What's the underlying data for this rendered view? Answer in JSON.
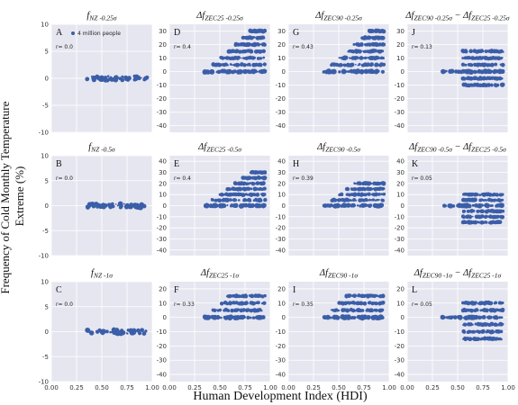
{
  "figure": {
    "ylabel": "Frequency of Cold Monthly Temperature Extreme (%)",
    "xlabel": "Human Development Index (HDI)",
    "ylabel_lines": [
      "Frequency of Cold Monthly Temperature",
      "Extreme (%)"
    ],
    "point_color": "#3b5ea8",
    "background_color": "#e6e6f0",
    "grid_color": "#ffffff"
  },
  "chart_data": [
    {
      "id": "A",
      "type": "scatter",
      "title": "f_{NZ -0.25σ}",
      "title_main": "f",
      "title_sub": "NZ -0.25σ",
      "r": "r= 0.0",
      "legend": "4 million people",
      "xlim": [
        0,
        1
      ],
      "ylim": [
        -10,
        10
      ],
      "xticks": [
        "0.00",
        "0.25",
        "0.50",
        "0.75",
        "1.00"
      ],
      "yticks": [
        -10,
        -5,
        0,
        5,
        10
      ],
      "distribution": {
        "x_range": [
          0.35,
          0.95
        ],
        "y_bands": [
          0
        ],
        "note": "all points at 0"
      }
    },
    {
      "id": "D",
      "type": "scatter",
      "title": "Δf_{ZEC25 -0.25σ}",
      "title_main": "Δf",
      "title_sub": "ZEC25 -0.25σ",
      "r": "r= 0.4",
      "xlim": [
        0,
        1
      ],
      "ylim": [
        -45,
        35
      ],
      "xticks": [
        "0.00",
        "0.25",
        "0.50",
        "0.75",
        "1.00"
      ],
      "yticks": [
        -40,
        -30,
        -20,
        -10,
        0,
        10,
        20,
        30
      ],
      "distribution": {
        "x_range": [
          0.35,
          0.95
        ],
        "y_bands": [
          0,
          5,
          10,
          15,
          20,
          25,
          30
        ],
        "trend": "increasing"
      }
    },
    {
      "id": "G",
      "type": "scatter",
      "title": "Δf_{ZEC90 -0.25σ}",
      "title_main": "Δf",
      "title_sub": "ZEC90 -0.25σ",
      "r": "r= 0.43",
      "xlim": [
        0,
        1
      ],
      "ylim": [
        -45,
        35
      ],
      "xticks": [
        "0.00",
        "0.25",
        "0.50",
        "0.75",
        "1.00"
      ],
      "yticks": [
        -40,
        -30,
        -20,
        -10,
        0,
        10,
        20,
        30
      ],
      "distribution": {
        "x_range": [
          0.35,
          0.95
        ],
        "y_bands": [
          0,
          5,
          10,
          15,
          20,
          25,
          30
        ],
        "trend": "increasing"
      }
    },
    {
      "id": "J",
      "type": "scatter",
      "title": "Δf_{ZEC90 -0.25σ} − Δf_{ZEC25 -0.25σ}",
      "title_main": "Δf",
      "title_sub": "ZEC90 -0.25σ",
      "title_mid": " − Δf",
      "title_sub2": "ZEC25 -0.25σ",
      "r": "r= 0.13",
      "xlim": [
        0,
        1
      ],
      "ylim": [
        -45,
        35
      ],
      "xticks": [
        "0.00",
        "0.25",
        "0.50",
        "0.75",
        "1.00"
      ],
      "yticks": [
        -40,
        -30,
        -20,
        -10,
        0,
        10,
        20,
        30
      ],
      "distribution": {
        "x_range": [
          0.35,
          0.95
        ],
        "y_bands": [
          -10,
          -5,
          0,
          5,
          10,
          15
        ],
        "trend": "flat"
      }
    },
    {
      "id": "B",
      "type": "scatter",
      "title": "f_{NZ -0.5σ}",
      "title_main": "f",
      "title_sub": "NZ -0.5σ",
      "r": "r= 0.0",
      "xlim": [
        0,
        1
      ],
      "ylim": [
        -10,
        10
      ],
      "xticks": [
        "0.00",
        "0.25",
        "0.50",
        "0.75",
        "1.00"
      ],
      "yticks": [
        -10,
        -5,
        0,
        5,
        10
      ],
      "distribution": {
        "x_range": [
          0.35,
          0.95
        ],
        "y_bands": [
          0
        ]
      }
    },
    {
      "id": "E",
      "type": "scatter",
      "title": "Δf_{ZEC25 -0.5σ}",
      "title_main": "Δf",
      "title_sub": "ZEC25 -0.5σ",
      "r": "r= 0.4",
      "xlim": [
        0,
        1
      ],
      "ylim": [
        -45,
        45
      ],
      "xticks": [
        "0.00",
        "0.25",
        "0.50",
        "0.75",
        "1.00"
      ],
      "yticks": [
        -40,
        -30,
        -20,
        -10,
        0,
        10,
        20,
        30,
        40
      ],
      "distribution": {
        "x_range": [
          0.35,
          0.95
        ],
        "y_bands": [
          0,
          5,
          10,
          15,
          20,
          25,
          30
        ],
        "trend": "increasing"
      }
    },
    {
      "id": "H",
      "type": "scatter",
      "title": "Δf_{ZEC90 -0.5σ}",
      "title_main": "Δf",
      "title_sub": "ZEC90 -0.5σ",
      "r": "r= 0.39",
      "xlim": [
        0,
        1
      ],
      "ylim": [
        -45,
        45
      ],
      "xticks": [
        "0.00",
        "0.25",
        "0.50",
        "0.75",
        "1.00"
      ],
      "yticks": [
        -40,
        -30,
        -20,
        -10,
        0,
        10,
        20,
        30,
        40
      ],
      "distribution": {
        "x_range": [
          0.35,
          0.95
        ],
        "y_bands": [
          0,
          5,
          10,
          15,
          20
        ],
        "trend": "increasing"
      }
    },
    {
      "id": "K",
      "type": "scatter",
      "title": "Δf_{ZEC90 -0.5σ} − Δf_{ZEC25 -0.5σ}",
      "title_main": "Δf",
      "title_sub": "ZEC90 -0.5σ",
      "title_mid": " − Δf",
      "title_sub2": "ZEC25 -0.5σ",
      "r": "r= 0.05",
      "xlim": [
        0,
        1
      ],
      "ylim": [
        -45,
        45
      ],
      "xticks": [
        "0.00",
        "0.25",
        "0.50",
        "0.75",
        "1.00"
      ],
      "yticks": [
        -40,
        -30,
        -20,
        -10,
        0,
        10,
        20,
        30,
        40
      ],
      "distribution": {
        "x_range": [
          0.35,
          0.95
        ],
        "y_bands": [
          -15,
          -10,
          -5,
          0,
          5,
          10
        ],
        "trend": "flat"
      }
    },
    {
      "id": "C",
      "type": "scatter",
      "title": "f_{NZ -1σ}",
      "title_main": "f",
      "title_sub": "NZ -1σ",
      "r": "r= 0.0",
      "xlim": [
        0,
        1
      ],
      "ylim": [
        -10,
        10
      ],
      "xticks": [
        "0.00",
        "0.25",
        "0.50",
        "0.75",
        "1.00"
      ],
      "yticks": [
        -10,
        -5,
        0,
        5,
        10
      ],
      "distribution": {
        "x_range": [
          0.35,
          0.95
        ],
        "y_bands": [
          0
        ]
      }
    },
    {
      "id": "F",
      "type": "scatter",
      "title": "Δf_{ZEC25 -1σ}",
      "title_main": "Δf",
      "title_sub": "ZEC25 -1σ",
      "r": "r= 0.33",
      "xlim": [
        0,
        1
      ],
      "ylim": [
        -45,
        25
      ],
      "xticks": [
        "0.00",
        "0.25",
        "0.50",
        "0.75",
        "1.00"
      ],
      "yticks": [
        -40,
        -30,
        -20,
        -10,
        0,
        10,
        20
      ],
      "distribution": {
        "x_range": [
          0.35,
          0.95
        ],
        "y_bands": [
          0,
          5,
          10,
          15
        ],
        "trend": "increasing"
      }
    },
    {
      "id": "I",
      "type": "scatter",
      "title": "Δf_{ZEC90 -1σ}",
      "title_main": "Δf",
      "title_sub": "ZEC90 -1σ",
      "r": "r= 0.35",
      "xlim": [
        0,
        1
      ],
      "ylim": [
        -45,
        25
      ],
      "xticks": [
        "0.00",
        "0.25",
        "0.50",
        "0.75",
        "1.00"
      ],
      "yticks": [
        -40,
        -30,
        -20,
        -10,
        0,
        10,
        20
      ],
      "distribution": {
        "x_range": [
          0.35,
          0.95
        ],
        "y_bands": [
          0,
          5,
          10,
          15
        ],
        "trend": "increasing"
      }
    },
    {
      "id": "L",
      "type": "scatter",
      "title": "Δf_{ZEC90 -1σ} − Δf_{ZEC25 -1σ}",
      "title_main": "Δf",
      "title_sub": "ZEC90 -1σ",
      "title_mid": " − Δf",
      "title_sub2": "ZEC25 -1σ",
      "r": "r= 0.05",
      "xlim": [
        0,
        1
      ],
      "ylim": [
        -45,
        25
      ],
      "xticks": [
        "0.00",
        "0.25",
        "0.50",
        "0.75",
        "1.00"
      ],
      "yticks": [
        -40,
        -30,
        -20,
        -10,
        0,
        10,
        20
      ],
      "distribution": {
        "x_range": [
          0.35,
          0.95
        ],
        "y_bands": [
          -15,
          -10,
          -5,
          0,
          5,
          10
        ],
        "trend": "flat"
      }
    }
  ]
}
